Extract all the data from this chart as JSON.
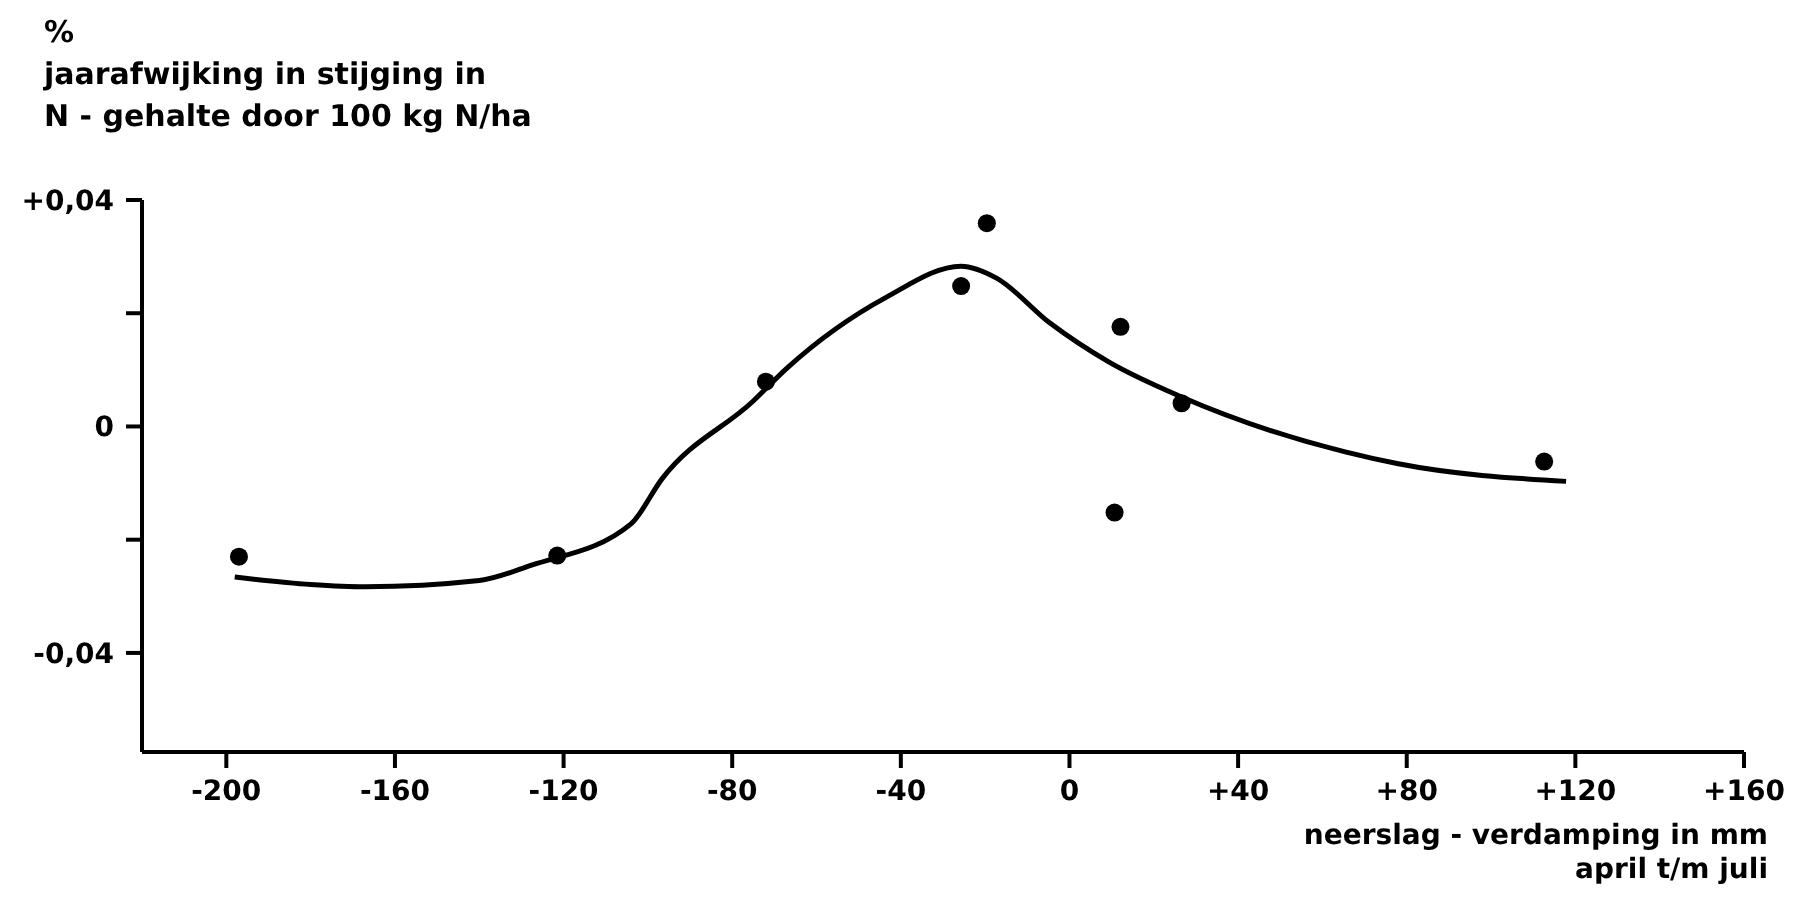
{
  "chart_data": {
    "type": "scatter",
    "ylabel": "%\njaarafwijking in stijging in\nN - gehalte door 100 kg N/ha",
    "xlabel": "neerslag - verdamping in mm\napril t/m juli",
    "series": [
      {
        "color": "#000000",
        "x": [
          -197,
          -121.5,
          -72,
          -25.7,
          -19.6,
          10.7,
          12.1,
          26.6,
          112.6
        ],
        "values": [
          -0.023,
          -0.0228,
          0.0079,
          0.0248,
          0.0359,
          -0.0152,
          0.0176,
          0.0041,
          -0.0062
        ]
      },
      {
        "type": "line",
        "marker": "none",
        "color": "#000000",
        "x": [
          -198,
          -180,
          -167,
          -140,
          -127.6,
          -104,
          -96.7,
          -75,
          -67,
          -43.5,
          -25.7,
          -17.3,
          -4.7,
          9.3,
          26.6,
          65.4,
          78,
          117.8
        ],
        "values": [
          -0.0266,
          -0.0279,
          -0.0283,
          -0.0272,
          -0.0245,
          -0.0172,
          -0.0093,
          0.0045,
          0.0103,
          0.0228,
          0.0283,
          0.0262,
          0.0183,
          0.0114,
          0.0052,
          -0.0045,
          -0.0066,
          -0.0097
        ]
      }
    ],
    "marker": "circle",
    "line_style": "solid",
    "grid": false,
    "legend": false,
    "xlim": [
      -220,
      160
    ],
    "xticks": [
      -200,
      -160,
      -120,
      -80,
      -40,
      0,
      {
        "value": 40,
        "label": "+40"
      },
      {
        "value": 80,
        "label": "+80"
      },
      {
        "value": 120,
        "label": "+120"
      },
      {
        "value": 160,
        "label": "+160"
      }
    ],
    "ylim": [
      -0.0575,
      0.04
    ],
    "yticks": [
      {
        "value": 0.04,
        "label": "+0,04"
      },
      {
        "value": 0.02,
        "label": null
      },
      {
        "value": 0,
        "label": "0"
      },
      {
        "value": -0.02,
        "label": null
      },
      {
        "value": -0.04,
        "label": "-0,04"
      }
    ]
  }
}
